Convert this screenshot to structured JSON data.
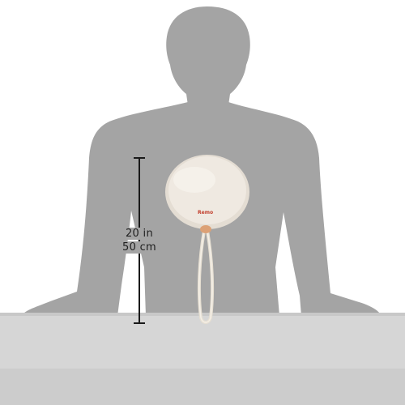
{
  "measurement": {
    "inches": "20 in",
    "centimeters": "50 cm"
  },
  "product": {
    "brand_mark": "Remo"
  },
  "colors": {
    "silhouette": "#a4a4a4",
    "table": "#d6d6d6",
    "table_shadow": "#c8c8c8",
    "drumhead": "#efe9e1",
    "rim": "#e4ddd3",
    "cord": "#ece6da",
    "bead": "#dca176",
    "measure_line": "#1a1a1a",
    "logo": "#c2402e"
  }
}
